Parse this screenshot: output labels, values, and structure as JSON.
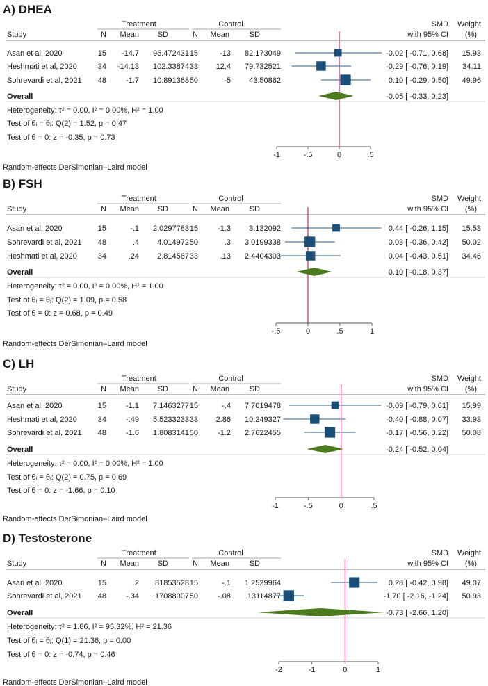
{
  "chart_data": [
    {
      "type": "forest",
      "panel_label": "A)",
      "title": "DHEA",
      "group_headers": [
        "Treatment",
        "Control"
      ],
      "columns": [
        "Study",
        "N",
        "Mean",
        "SD",
        "N",
        "Mean",
        "SD"
      ],
      "effect_header": [
        "SMD",
        "with 95% CI"
      ],
      "weight_header": [
        "Weight",
        "(%)"
      ],
      "xlim": [
        -1,
        0.5
      ],
      "ticks": [
        -1,
        -0.5,
        0,
        0.5
      ],
      "tick_labels": [
        "-1",
        "-.5",
        "0",
        ".5"
      ],
      "studies": [
        {
          "study": "Asan et al, 2020",
          "n1": "15",
          "mean1": "-14.7",
          "sd1": "96.472431",
          "n2": "15",
          "mean2": "-13",
          "sd2": "82.173049",
          "smd": -0.02,
          "lo": -0.71,
          "hi": 0.68,
          "ci_text": "-0.02 [ -0.71, 0.68]",
          "weight": "15.93",
          "w": 15.93
        },
        {
          "study": "Heshmati et al, 2020",
          "n1": "34",
          "mean1": "-14.13",
          "sd1": "102.33874",
          "n2": "33",
          "mean2": "12.4",
          "sd2": "79.732521",
          "smd": -0.29,
          "lo": -0.76,
          "hi": 0.19,
          "ci_text": "-0.29 [ -0.76, 0.19]",
          "weight": "34.11",
          "w": 34.11
        },
        {
          "study": "Sohrevardi et al, 2021",
          "n1": "48",
          "mean1": "-1.7",
          "sd1": "10.891368",
          "n2": "50",
          "mean2": "-5",
          "sd2": "43.50862",
          "smd": 0.1,
          "lo": -0.29,
          "hi": 0.5,
          "ci_text": "0.10 [ -0.29, 0.50]",
          "weight": "49.96",
          "w": 49.96
        }
      ],
      "overall": {
        "label": "Overall",
        "smd": -0.05,
        "lo": -0.33,
        "hi": 0.23,
        "ci_text": "-0.05 [ -0.33, 0.23]"
      },
      "stats": [
        "Heterogeneity: τ² = 0.00, I² = 0.00%, H² = 1.00",
        "Test of θᵢ = θⱼ: Q(2) = 1.52, p = 0.47",
        "Test of θ = 0: z = -0.35, p = 0.73"
      ],
      "model_note": "Random-effects DerSimonian–Laird model"
    },
    {
      "type": "forest",
      "panel_label": "B)",
      "title": "FSH",
      "group_headers": [
        "Treatment",
        "Control"
      ],
      "columns": [
        "Study",
        "N",
        "Mean",
        "SD",
        "N",
        "Mean",
        "SD"
      ],
      "effect_header": [
        "SMD",
        "with 95% CI"
      ],
      "weight_header": [
        "Weight",
        "(%)"
      ],
      "xlim": [
        -0.5,
        1
      ],
      "ticks": [
        -0.5,
        0,
        0.5,
        1
      ],
      "tick_labels": [
        "-.5",
        "0",
        ".5",
        "1"
      ],
      "studies": [
        {
          "study": "Asan et al, 2020",
          "n1": "15",
          "mean1": "-.1",
          "sd1": "2.0297783",
          "n2": "15",
          "mean2": "-1.3",
          "sd2": "3.132092",
          "smd": 0.44,
          "lo": -0.26,
          "hi": 1.15,
          "ci_text": "0.44 [ -0.26, 1.15]",
          "weight": "15.53",
          "w": 15.53
        },
        {
          "study": "Sohrevardi et al, 2021",
          "n1": "48",
          "mean1": ".4",
          "sd1": "4.014972",
          "n2": "50",
          "mean2": ".3",
          "sd2": "3.0199338",
          "smd": 0.03,
          "lo": -0.36,
          "hi": 0.42,
          "ci_text": "0.03 [ -0.36, 0.42]",
          "weight": "50.02",
          "w": 50.02
        },
        {
          "study": "Heshmati et al, 2020",
          "n1": "34",
          "mean1": ".24",
          "sd1": "2.814587",
          "n2": "33",
          "mean2": ".13",
          "sd2": "2.4404303",
          "smd": 0.04,
          "lo": -0.43,
          "hi": 0.51,
          "ci_text": "0.04 [ -0.43, 0.51]",
          "weight": "34.46",
          "w": 34.46
        }
      ],
      "overall": {
        "label": "Overall",
        "smd": 0.1,
        "lo": -0.18,
        "hi": 0.37,
        "ci_text": "0.10 [ -0.18, 0.37]"
      },
      "stats": [
        "Heterogeneity: τ² = 0.00, I² = 0.00%, H² = 1.00",
        "Test of θᵢ = θⱼ: Q(2) = 1.09, p = 0.58",
        "Test of θ = 0: z = 0.68, p = 0.49"
      ],
      "model_note": "Random-effects DerSimonian–Laird model"
    },
    {
      "type": "forest",
      "panel_label": "C)",
      "title": "LH",
      "group_headers": [
        "Treatment",
        "Control"
      ],
      "columns": [
        "Study",
        "N",
        "Mean",
        "SD",
        "N",
        "Mean",
        "SD"
      ],
      "effect_header": [
        "SMD",
        "with 95% CI"
      ],
      "weight_header": [
        "Weight",
        "(%)"
      ],
      "xlim": [
        -1,
        0.5
      ],
      "ticks": [
        -1,
        -0.5,
        0,
        0.5
      ],
      "tick_labels": [
        "-1",
        "-.5",
        "0",
        ".5"
      ],
      "studies": [
        {
          "study": "Asan et al, 2020",
          "n1": "15",
          "mean1": "-1.1",
          "sd1": "7.1463277",
          "n2": "15",
          "mean2": "-.4",
          "sd2": "7.7019478",
          "smd": -0.09,
          "lo": -0.79,
          "hi": 0.61,
          "ci_text": "-0.09 [ -0.79, 0.61]",
          "weight": "15.99",
          "w": 15.99
        },
        {
          "study": "Heshmati et al, 2020",
          "n1": "34",
          "mean1": "-.49",
          "sd1": "5.5233233",
          "n2": "33",
          "mean2": "2.86",
          "sd2": "10.249327",
          "smd": -0.4,
          "lo": -0.88,
          "hi": 0.07,
          "ci_text": "-0.40 [ -0.88, 0.07]",
          "weight": "33.93",
          "w": 33.93
        },
        {
          "study": "Sohrevardi et al, 2021",
          "n1": "48",
          "mean1": "-1.6",
          "sd1": "1.8083141",
          "n2": "50",
          "mean2": "-1.2",
          "sd2": "2.7622455",
          "smd": -0.17,
          "lo": -0.56,
          "hi": 0.22,
          "ci_text": "-0.17 [ -0.56, 0.22]",
          "weight": "50.08",
          "w": 50.08
        }
      ],
      "overall": {
        "label": "Overall",
        "smd": -0.24,
        "lo": -0.52,
        "hi": 0.04,
        "ci_text": "-0.24 [ -0.52, 0.04]"
      },
      "stats": [
        "Heterogeneity: τ² = 0.00, I² = 0.00%, H² = 1.00",
        "Test of θᵢ = θⱼ: Q(2) = 0.75, p = 0.69",
        "Test of θ = 0: z = -1.66, p = 0.10"
      ],
      "model_note": "Random-effects DerSimonian–Laird model"
    },
    {
      "type": "forest",
      "panel_label": "D)",
      "title": "Testosterone",
      "group_headers": [
        "Treatment",
        "Control"
      ],
      "columns": [
        "Study",
        "N",
        "Mean",
        "SD",
        "N",
        "Mean",
        "SD"
      ],
      "effect_header": [
        "SMD",
        "with 95% CI"
      ],
      "weight_header": [
        "Weight",
        "(%)"
      ],
      "xlim": [
        -2,
        1
      ],
      "ticks": [
        -2,
        -1,
        0,
        1
      ],
      "tick_labels": [
        "-2",
        "-1",
        "0",
        "1"
      ],
      "studies": [
        {
          "study": "Asan et al, 2020",
          "n1": "15",
          "mean1": ".2",
          "sd1": ".81853528",
          "n2": "15",
          "mean2": "-.1",
          "sd2": "1.2529964",
          "smd": 0.28,
          "lo": -0.42,
          "hi": 0.98,
          "ci_text": "0.28 [ -0.42, 0.98]",
          "weight": "49.07",
          "w": 49.07
        },
        {
          "study": "Sohrevardi et al, 2021",
          "n1": "48",
          "mean1": "-.34",
          "sd1": ".17088007",
          "n2": "50",
          "mean2": "-.08",
          "sd2": ".13114877",
          "smd": -1.7,
          "lo": -2.16,
          "hi": -1.24,
          "ci_text": "-1.70 [ -2.16, -1.24]",
          "weight": "50.93",
          "w": 50.93
        }
      ],
      "overall": {
        "label": "Overall",
        "smd": -0.73,
        "lo": -2.66,
        "hi": 1.2,
        "ci_text": "-0.73 [ -2.66, 1.20]"
      },
      "stats": [
        "Heterogeneity: τ² = 1.86, I² = 95.32%, H² = 21.36",
        "Test of θᵢ = θⱼ: Q(1) = 21.36, p = 0.00",
        "Test of θ = 0: z = -0.74, p = 0.46"
      ],
      "model_note": "Random-effects DerSimonian–Laird model"
    }
  ],
  "colors": {
    "square": "#1b4f78",
    "ci_line": "#2c5d8a",
    "diamond": "#4b7a1f",
    "null_line": "#c2185b",
    "rule": "#555555",
    "text": "#1a1a1a"
  }
}
